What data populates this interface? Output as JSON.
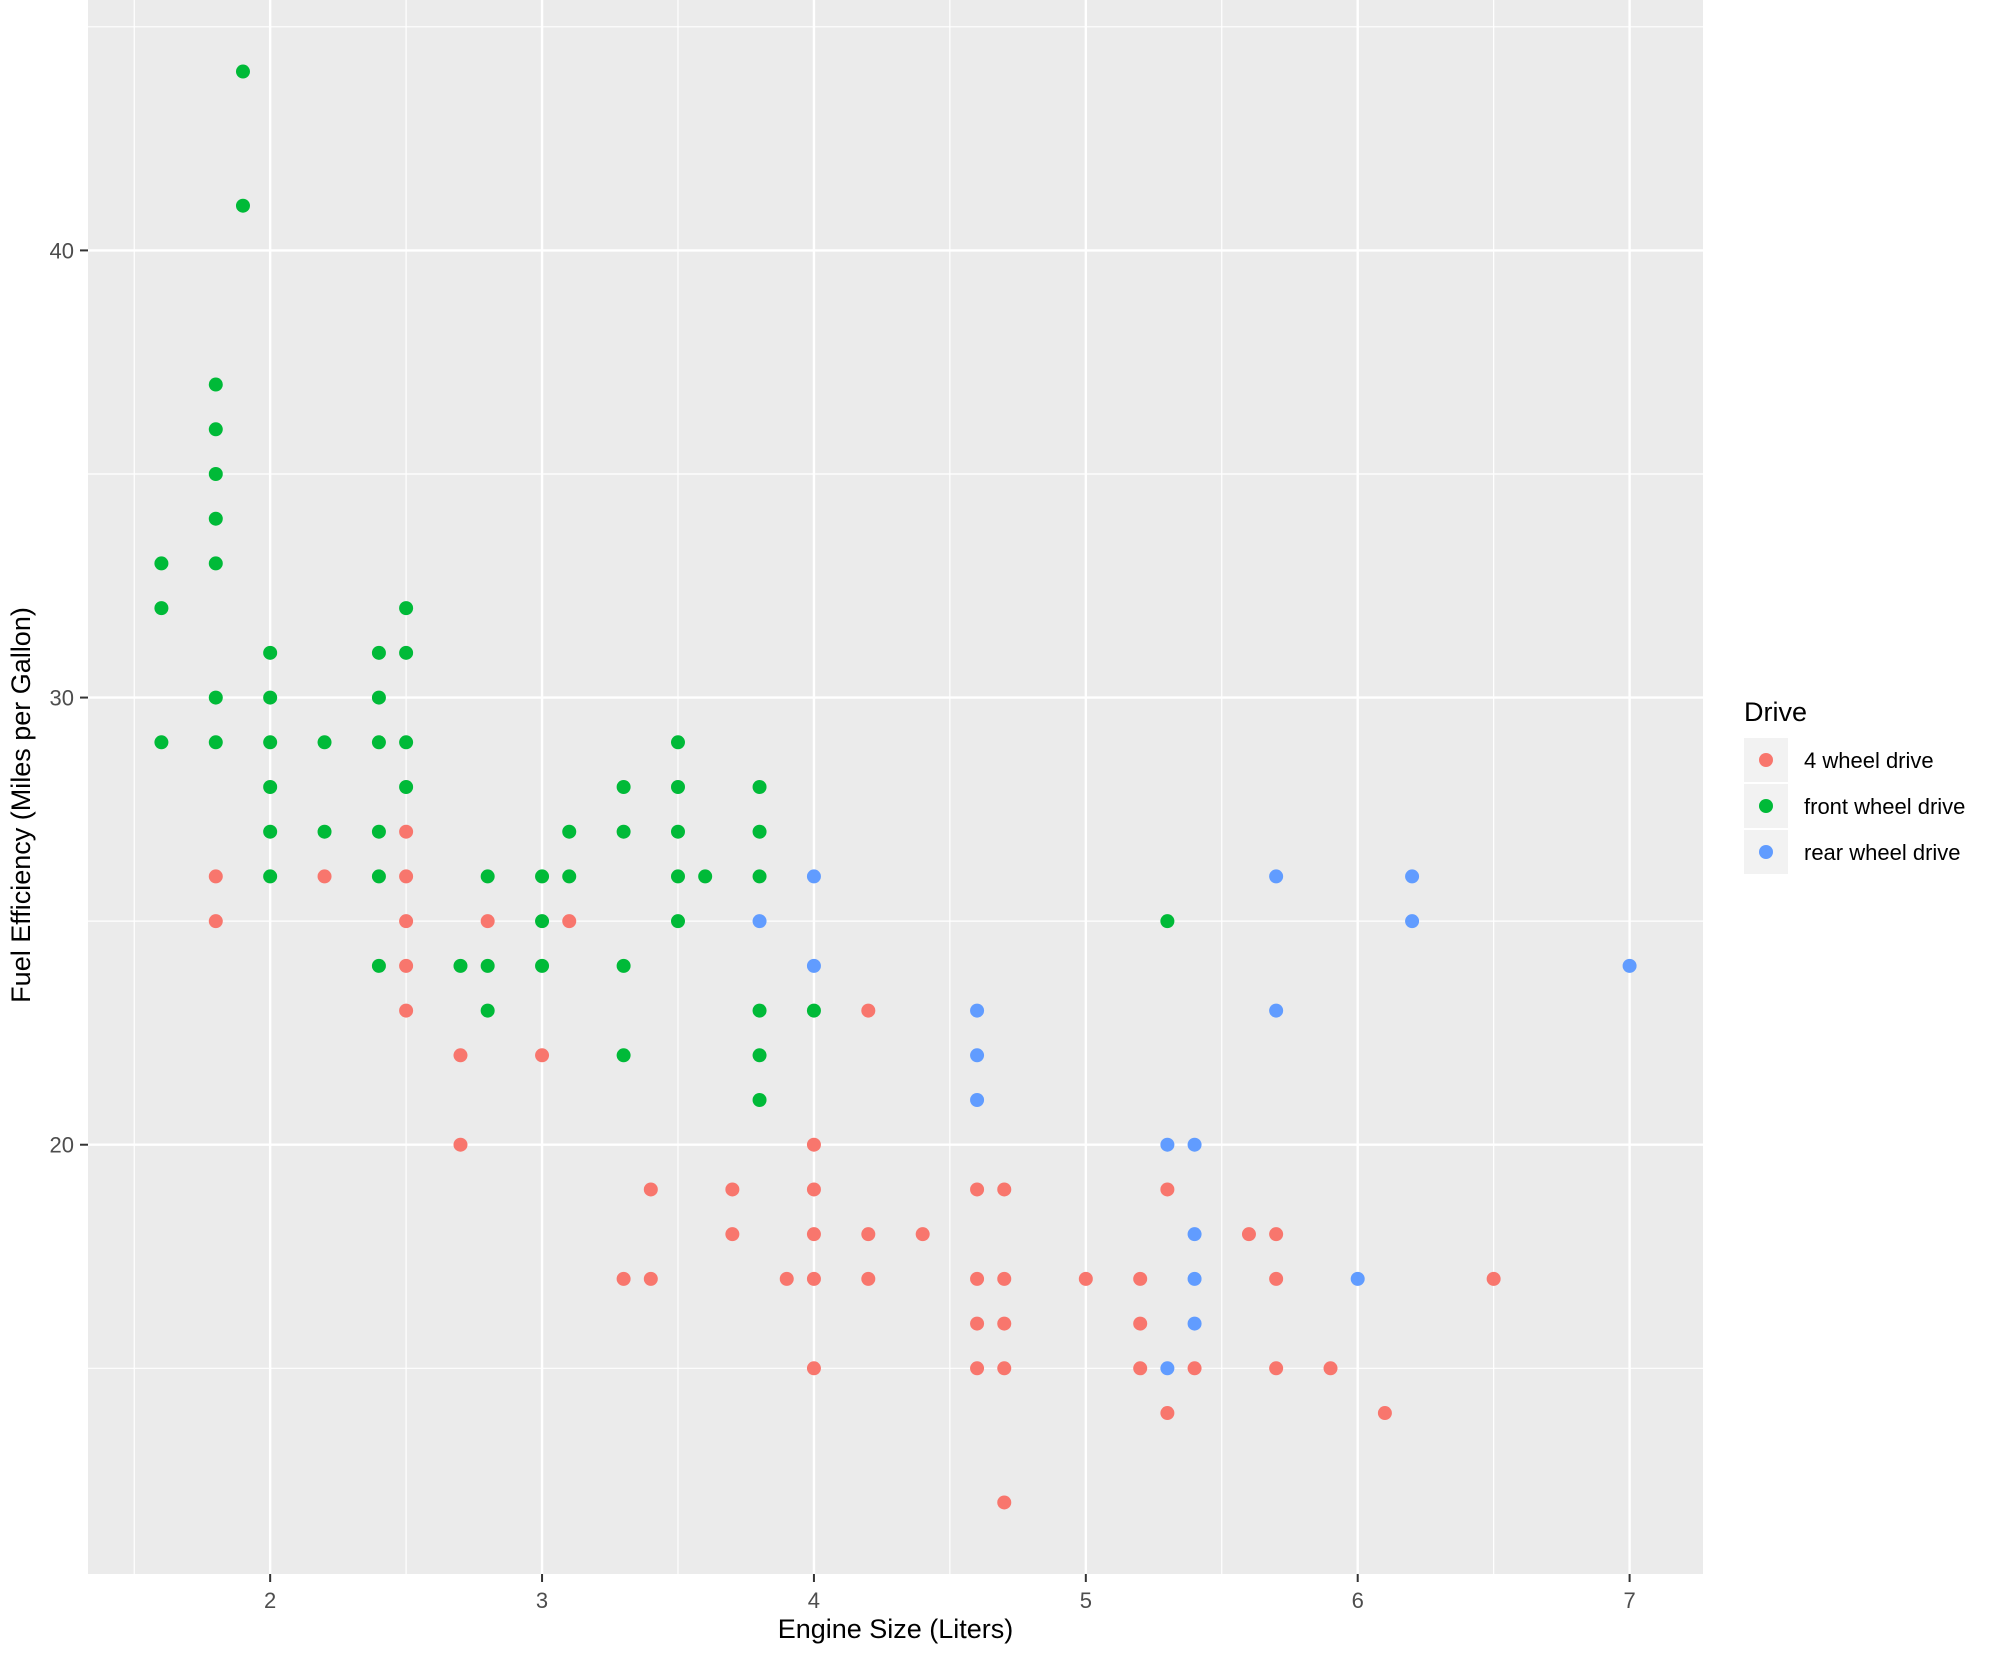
{
  "chart_data": {
    "type": "scatter",
    "title": "",
    "xlabel": "Engine Size (Liters)",
    "ylabel": "Fuel Efficiency (Miles per Gallon)",
    "xlim": [
      1.33,
      7.27
    ],
    "ylim": [
      10.4,
      45.6
    ],
    "x_ticks": [
      2,
      3,
      4,
      5,
      6,
      7
    ],
    "x_tick_labels": [
      "2",
      "3",
      "4",
      "5",
      "6",
      "7"
    ],
    "y_ticks": [
      20,
      30,
      40
    ],
    "y_tick_labels": [
      "20",
      "30",
      "40"
    ],
    "grid": true,
    "background": "#ebebeb",
    "legend": {
      "title": "Drive",
      "position": "right",
      "entries": [
        "4 wheel drive",
        "front wheel drive",
        "rear wheel drive"
      ]
    },
    "series": [
      {
        "name": "4 wheel drive",
        "color": "#f8766d",
        "points": [
          [
            1.8,
            26
          ],
          [
            1.8,
            25
          ],
          [
            2.2,
            26
          ],
          [
            2.5,
            27
          ],
          [
            2.5,
            26
          ],
          [
            2.5,
            25
          ],
          [
            2.5,
            24
          ],
          [
            2.5,
            23
          ],
          [
            2.7,
            22
          ],
          [
            2.7,
            20
          ],
          [
            2.8,
            25
          ],
          [
            3.0,
            22
          ],
          [
            3.1,
            25
          ],
          [
            3.3,
            17
          ],
          [
            3.4,
            19
          ],
          [
            3.4,
            17
          ],
          [
            3.7,
            19
          ],
          [
            3.7,
            18
          ],
          [
            3.9,
            17
          ],
          [
            4.0,
            20
          ],
          [
            4.0,
            19
          ],
          [
            4.0,
            18
          ],
          [
            4.0,
            17
          ],
          [
            4.0,
            15
          ],
          [
            4.2,
            23
          ],
          [
            4.2,
            18
          ],
          [
            4.2,
            17
          ],
          [
            4.4,
            18
          ],
          [
            4.6,
            19
          ],
          [
            4.6,
            17
          ],
          [
            4.6,
            16
          ],
          [
            4.6,
            15
          ],
          [
            4.7,
            19
          ],
          [
            4.7,
            17
          ],
          [
            4.7,
            16
          ],
          [
            4.7,
            15
          ],
          [
            4.7,
            12
          ],
          [
            5.0,
            17
          ],
          [
            5.2,
            17
          ],
          [
            5.2,
            16
          ],
          [
            5.2,
            15
          ],
          [
            5.3,
            19
          ],
          [
            5.3,
            14
          ],
          [
            5.4,
            15
          ],
          [
            5.6,
            18
          ],
          [
            5.7,
            18
          ],
          [
            5.7,
            17
          ],
          [
            5.7,
            15
          ],
          [
            5.9,
            15
          ],
          [
            6.1,
            14
          ],
          [
            6.5,
            17
          ]
        ]
      },
      {
        "name": "front wheel drive",
        "color": "#00ba38",
        "points": [
          [
            1.6,
            33
          ],
          [
            1.6,
            32
          ],
          [
            1.6,
            29
          ],
          [
            1.8,
            37
          ],
          [
            1.8,
            36
          ],
          [
            1.8,
            35
          ],
          [
            1.8,
            34
          ],
          [
            1.8,
            33
          ],
          [
            1.8,
            30
          ],
          [
            1.8,
            29
          ],
          [
            1.9,
            44
          ],
          [
            1.9,
            41
          ],
          [
            2.0,
            31
          ],
          [
            2.0,
            30
          ],
          [
            2.0,
            29
          ],
          [
            2.0,
            28
          ],
          [
            2.0,
            27
          ],
          [
            2.0,
            26
          ],
          [
            2.2,
            29
          ],
          [
            2.2,
            27
          ],
          [
            2.4,
            31
          ],
          [
            2.4,
            30
          ],
          [
            2.4,
            29
          ],
          [
            2.4,
            27
          ],
          [
            2.4,
            26
          ],
          [
            2.4,
            24
          ],
          [
            2.5,
            32
          ],
          [
            2.5,
            31
          ],
          [
            2.5,
            29
          ],
          [
            2.5,
            28
          ],
          [
            2.7,
            24
          ],
          [
            2.8,
            26
          ],
          [
            2.8,
            24
          ],
          [
            2.8,
            23
          ],
          [
            3.0,
            26
          ],
          [
            3.0,
            25
          ],
          [
            3.0,
            24
          ],
          [
            3.1,
            27
          ],
          [
            3.1,
            26
          ],
          [
            3.3,
            28
          ],
          [
            3.3,
            27
          ],
          [
            3.3,
            24
          ],
          [
            3.3,
            22
          ],
          [
            3.5,
            29
          ],
          [
            3.5,
            28
          ],
          [
            3.5,
            27
          ],
          [
            3.5,
            26
          ],
          [
            3.5,
            25
          ],
          [
            3.6,
            26
          ],
          [
            3.8,
            28
          ],
          [
            3.8,
            27
          ],
          [
            3.8,
            26
          ],
          [
            3.8,
            23
          ],
          [
            3.8,
            22
          ],
          [
            3.8,
            21
          ],
          [
            4.0,
            23
          ],
          [
            5.3,
            25
          ]
        ]
      },
      {
        "name": "rear wheel drive",
        "color": "#619cff",
        "points": [
          [
            3.8,
            25
          ],
          [
            4.0,
            26
          ],
          [
            4.0,
            24
          ],
          [
            4.6,
            23
          ],
          [
            4.6,
            22
          ],
          [
            4.6,
            21
          ],
          [
            5.3,
            20
          ],
          [
            5.3,
            15
          ],
          [
            5.4,
            20
          ],
          [
            5.4,
            18
          ],
          [
            5.4,
            17
          ],
          [
            5.4,
            16
          ],
          [
            5.7,
            26
          ],
          [
            5.7,
            23
          ],
          [
            6.0,
            17
          ],
          [
            6.2,
            26
          ],
          [
            6.2,
            25
          ],
          [
            7.0,
            24
          ]
        ]
      }
    ]
  }
}
